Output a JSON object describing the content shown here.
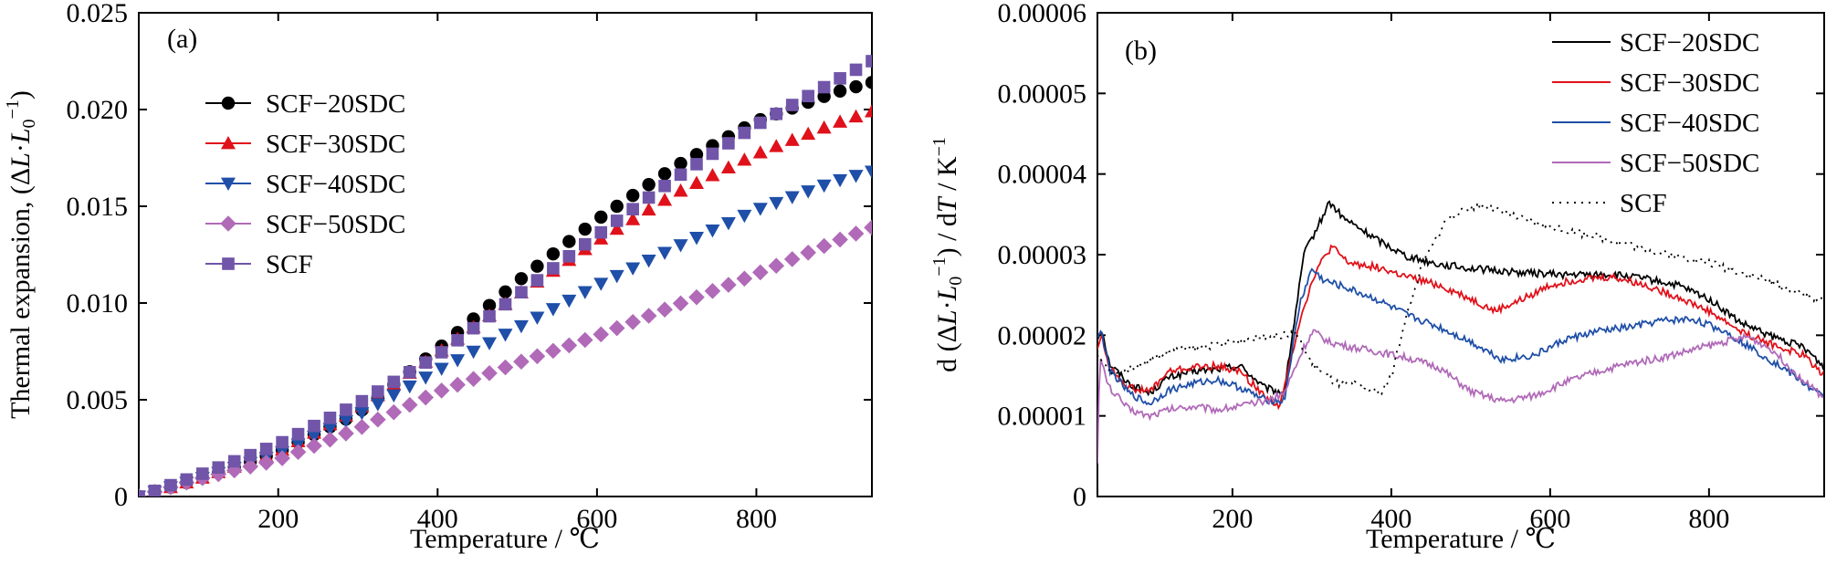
{
  "chart_data": [
    {
      "panel_label": "(a)",
      "type": "scatter",
      "xlabel": "Temperature / ℃",
      "ylabel_main": "Thermal expansion, (",
      "ylabel_delta": "Δ",
      "ylabel_l": "L",
      "ylabel_dot": "·",
      "ylabel_l0": "L",
      "ylabel_sub": "0",
      "ylabel_sup": "−1",
      "ylabel_close": ")",
      "xlim": [
        25,
        945
      ],
      "ylim": [
        0,
        0.025
      ],
      "xticks": [
        200,
        400,
        600,
        800
      ],
      "xtick_labels": [
        "200",
        "400",
        "600",
        "800"
      ],
      "yticks": [
        0,
        0.005,
        0.01,
        0.015,
        0.02,
        0.025
      ],
      "ytick_labels": [
        "0",
        "0.005",
        "0.010",
        "0.015",
        "0.020",
        "0.025"
      ],
      "legend_position": "center-left",
      "series": [
        {
          "name": "SCF−20SDC",
          "color": "#000000",
          "marker": "circle",
          "points": [
            [
              25,
              0
            ],
            [
              100,
              0.0009
            ],
            [
              200,
              0.0023
            ],
            [
              300,
              0.0043
            ],
            [
              400,
              0.0076
            ],
            [
              500,
              0.0111
            ],
            [
              600,
              0.0143
            ],
            [
              700,
              0.0171
            ],
            [
              800,
              0.0194
            ],
            [
              900,
              0.0209
            ],
            [
              945,
              0.0214
            ]
          ]
        },
        {
          "name": "SCF−30SDC",
          "color": "#e0111a",
          "marker": "triangle-up",
          "points": [
            [
              25,
              0
            ],
            [
              100,
              0.0009
            ],
            [
              200,
              0.0023
            ],
            [
              300,
              0.0045
            ],
            [
              400,
              0.0074
            ],
            [
              500,
              0.0104
            ],
            [
              600,
              0.0132
            ],
            [
              700,
              0.0157
            ],
            [
              800,
              0.0177
            ],
            [
              900,
              0.0193
            ],
            [
              945,
              0.0199
            ]
          ]
        },
        {
          "name": "SCF−40SDC",
          "color": "#1f4fa8",
          "marker": "triangle-down",
          "points": [
            [
              25,
              0
            ],
            [
              100,
              0.0009
            ],
            [
              200,
              0.0022
            ],
            [
              300,
              0.0042
            ],
            [
              400,
              0.0065
            ],
            [
              500,
              0.0087
            ],
            [
              600,
              0.0109
            ],
            [
              700,
              0.0129
            ],
            [
              800,
              0.0148
            ],
            [
              900,
              0.0163
            ],
            [
              945,
              0.0168
            ]
          ]
        },
        {
          "name": "SCF−50SDC",
          "color": "#b06ab8",
          "marker": "diamond",
          "points": [
            [
              25,
              0
            ],
            [
              100,
              0.0009
            ],
            [
              200,
              0.0019
            ],
            [
              300,
              0.0035
            ],
            [
              400,
              0.0054
            ],
            [
              500,
              0.0069
            ],
            [
              600,
              0.0083
            ],
            [
              700,
              0.0099
            ],
            [
              800,
              0.0115
            ],
            [
              900,
              0.0132
            ],
            [
              945,
              0.0139
            ]
          ]
        },
        {
          "name": "SCF",
          "color": "#7055a8",
          "marker": "square",
          "points": [
            [
              25,
              0
            ],
            [
              100,
              0.0011
            ],
            [
              200,
              0.0027
            ],
            [
              300,
              0.0048
            ],
            [
              400,
              0.0073
            ],
            [
              500,
              0.0104
            ],
            [
              600,
              0.0135
            ],
            [
              700,
              0.0165
            ],
            [
              800,
              0.0192
            ],
            [
              900,
              0.0215
            ],
            [
              945,
              0.0225
            ]
          ]
        }
      ]
    },
    {
      "panel_label": "(b)",
      "type": "line",
      "xlabel": "Temperature / ℃",
      "ylabel_main": "d (",
      "ylabel_delta": "Δ",
      "ylabel_l": "L",
      "ylabel_dot": "·",
      "ylabel_l0": "L",
      "ylabel_sub": "0",
      "ylabel_sup": "−1",
      "ylabel_close": ") / d",
      "ylabel_t": "T",
      "ylabel_unit": " / K",
      "ylabel_unit_sup": "−1",
      "xlim": [
        30,
        945
      ],
      "ylim": [
        0,
        6e-05
      ],
      "xticks": [
        200,
        400,
        600,
        800
      ],
      "xtick_labels": [
        "200",
        "400",
        "600",
        "800"
      ],
      "yticks": [
        0,
        1e-05,
        2e-05,
        3e-05,
        4e-05,
        5e-05,
        6e-05
      ],
      "ytick_labels": [
        "0",
        "0.00001",
        "0.00002",
        "0.00003",
        "0.00004",
        "0.00005",
        "0.00006"
      ],
      "legend_position": "top-right",
      "series": [
        {
          "name": "SCF−20SDC",
          "color": "#000000",
          "dash": "none",
          "points": [
            [
              30,
              1.95e-05
            ],
            [
              35,
              2.1e-05
            ],
            [
              45,
              1.65e-05
            ],
            [
              70,
              1.4e-05
            ],
            [
              95,
              1.28e-05
            ],
            [
              120,
              1.48e-05
            ],
            [
              150,
              1.55e-05
            ],
            [
              180,
              1.58e-05
            ],
            [
              210,
              1.62e-05
            ],
            [
              240,
              1.35e-05
            ],
            [
              265,
              1.28e-05
            ],
            [
              290,
              3e-05
            ],
            [
              310,
              3.4e-05
            ],
            [
              322,
              3.65e-05
            ],
            [
              340,
              3.45e-05
            ],
            [
              380,
              3.2e-05
            ],
            [
              420,
              2.98e-05
            ],
            [
              460,
              2.88e-05
            ],
            [
              500,
              2.83e-05
            ],
            [
              560,
              2.78e-05
            ],
            [
              620,
              2.75e-05
            ],
            [
              680,
              2.75e-05
            ],
            [
              720,
              2.7e-05
            ],
            [
              760,
              2.62e-05
            ],
            [
              800,
              2.45e-05
            ],
            [
              840,
              2.15e-05
            ],
            [
              880,
              1.98e-05
            ],
            [
              920,
              1.85e-05
            ],
            [
              945,
              1.6e-05
            ]
          ]
        },
        {
          "name": "SCF−30SDC",
          "color": "#e0111a",
          "dash": "none",
          "points": [
            [
              30,
              1.85e-05
            ],
            [
              35,
              2e-05
            ],
            [
              45,
              1.6e-05
            ],
            [
              70,
              1.35e-05
            ],
            [
              95,
              1.3e-05
            ],
            [
              120,
              1.55e-05
            ],
            [
              150,
              1.6e-05
            ],
            [
              180,
              1.62e-05
            ],
            [
              210,
              1.55e-05
            ],
            [
              240,
              1.25e-05
            ],
            [
              260,
              1.12e-05
            ],
            [
              285,
              2.2e-05
            ],
            [
              305,
              2.8e-05
            ],
            [
              325,
              3.1e-05
            ],
            [
              345,
              2.9e-05
            ],
            [
              380,
              2.85e-05
            ],
            [
              420,
              2.72e-05
            ],
            [
              460,
              2.62e-05
            ],
            [
              500,
              2.45e-05
            ],
            [
              530,
              2.3e-05
            ],
            [
              560,
              2.42e-05
            ],
            [
              600,
              2.62e-05
            ],
            [
              640,
              2.7e-05
            ],
            [
              680,
              2.72e-05
            ],
            [
              720,
              2.62e-05
            ],
            [
              760,
              2.48e-05
            ],
            [
              800,
              2.3e-05
            ],
            [
              840,
              2.05e-05
            ],
            [
              880,
              1.88e-05
            ],
            [
              920,
              1.75e-05
            ],
            [
              945,
              1.5e-05
            ]
          ]
        },
        {
          "name": "SCF−40SDC",
          "color": "#1f4fa8",
          "dash": "none",
          "points": [
            [
              30,
              2e-05
            ],
            [
              35,
              2.05e-05
            ],
            [
              45,
              1.58e-05
            ],
            [
              70,
              1.28e-05
            ],
            [
              95,
              1.15e-05
            ],
            [
              120,
              1.32e-05
            ],
            [
              150,
              1.4e-05
            ],
            [
              180,
              1.45e-05
            ],
            [
              210,
              1.35e-05
            ],
            [
              240,
              1.2e-05
            ],
            [
              265,
              1.18e-05
            ],
            [
              285,
              2.4e-05
            ],
            [
              300,
              2.82e-05
            ],
            [
              315,
              2.68e-05
            ],
            [
              340,
              2.6e-05
            ],
            [
              380,
              2.45e-05
            ],
            [
              420,
              2.25e-05
            ],
            [
              460,
              2.1e-05
            ],
            [
              500,
              1.92e-05
            ],
            [
              540,
              1.7e-05
            ],
            [
              580,
              1.75e-05
            ],
            [
              620,
              1.95e-05
            ],
            [
              660,
              2.05e-05
            ],
            [
              700,
              2.1e-05
            ],
            [
              740,
              2.18e-05
            ],
            [
              780,
              2.2e-05
            ],
            [
              820,
              2.05e-05
            ],
            [
              860,
              1.8e-05
            ],
            [
              900,
              1.55e-05
            ],
            [
              945,
              1.22e-05
            ]
          ]
        },
        {
          "name": "SCF−50SDC",
          "color": "#b06ab8",
          "dash": "none",
          "points": [
            [
              30,
              4.5e-06
            ],
            [
              33,
              1.72e-05
            ],
            [
              45,
              1.35e-05
            ],
            [
              70,
              1.08e-05
            ],
            [
              95,
              1e-05
            ],
            [
              120,
              1.08e-05
            ],
            [
              150,
              1.12e-05
            ],
            [
              180,
              1.08e-05
            ],
            [
              210,
              1.12e-05
            ],
            [
              240,
              1.18e-05
            ],
            [
              265,
              1.28e-05
            ],
            [
              290,
              1.85e-05
            ],
            [
              302,
              2.05e-05
            ],
            [
              320,
              1.92e-05
            ],
            [
              350,
              1.85e-05
            ],
            [
              380,
              1.8e-05
            ],
            [
              420,
              1.72e-05
            ],
            [
              460,
              1.6e-05
            ],
            [
              500,
              1.3e-05
            ],
            [
              540,
              1.18e-05
            ],
            [
              580,
              1.25e-05
            ],
            [
              620,
              1.42e-05
            ],
            [
              660,
              1.55e-05
            ],
            [
              700,
              1.65e-05
            ],
            [
              740,
              1.72e-05
            ],
            [
              780,
              1.82e-05
            ],
            [
              820,
              1.92e-05
            ],
            [
              850,
              1.98e-05
            ],
            [
              880,
              1.82e-05
            ],
            [
              910,
              1.52e-05
            ],
            [
              945,
              1.22e-05
            ]
          ]
        },
        {
          "name": "SCF",
          "color": "#000000",
          "dash": "2,6",
          "points": [
            [
              30,
              1.72e-05
            ],
            [
              50,
              1.52e-05
            ],
            [
              80,
              1.62e-05
            ],
            [
              120,
              1.8e-05
            ],
            [
              160,
              1.85e-05
            ],
            [
              200,
              1.92e-05
            ],
            [
              240,
              1.98e-05
            ],
            [
              280,
              2.02e-05
            ],
            [
              300,
              1.65e-05
            ],
            [
              330,
              1.4e-05
            ],
            [
              360,
              1.38e-05
            ],
            [
              385,
              1.28e-05
            ],
            [
              400,
              1.48e-05
            ],
            [
              415,
              2.1e-05
            ],
            [
              440,
              2.9e-05
            ],
            [
              470,
              3.45e-05
            ],
            [
              500,
              3.58e-05
            ],
            [
              515,
              3.62e-05
            ],
            [
              540,
              3.52e-05
            ],
            [
              580,
              3.4e-05
            ],
            [
              620,
              3.3e-05
            ],
            [
              680,
              3.18e-05
            ],
            [
              740,
              3.02e-05
            ],
            [
              800,
              2.9e-05
            ],
            [
              860,
              2.72e-05
            ],
            [
              900,
              2.58e-05
            ],
            [
              945,
              2.42e-05
            ]
          ]
        }
      ]
    }
  ]
}
